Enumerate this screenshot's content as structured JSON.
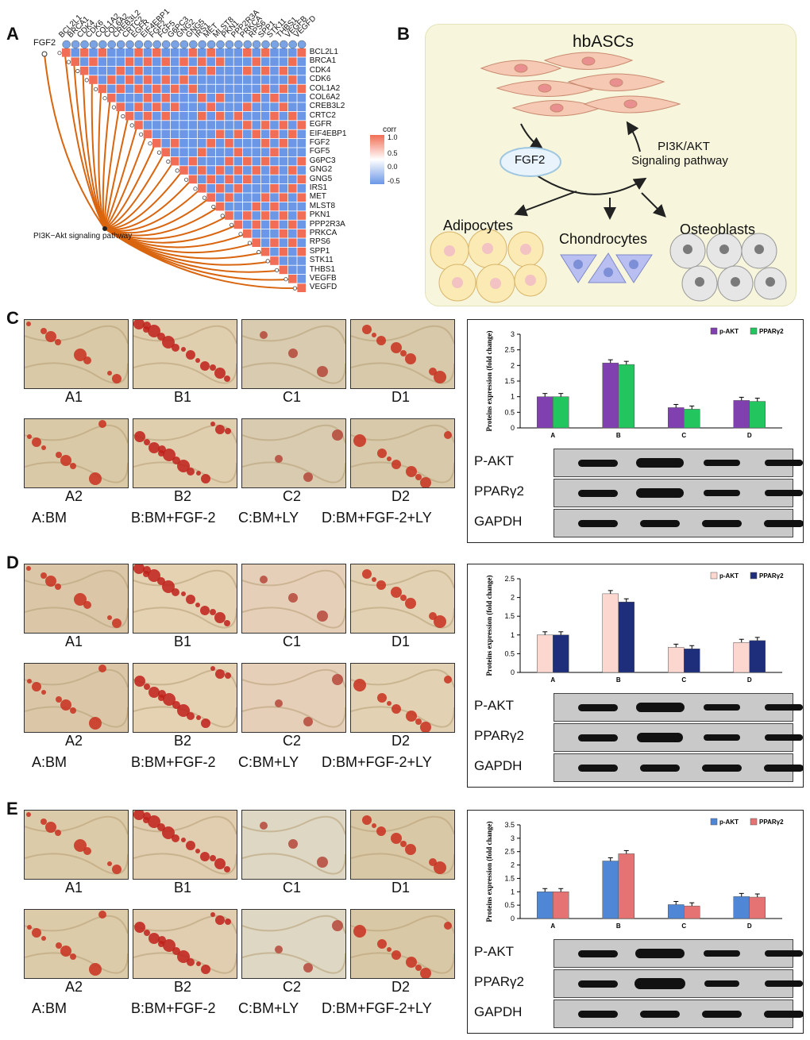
{
  "panelA": {
    "label": "A",
    "source_gene": "FGF2",
    "pathway": "PI3K−Akt signaling pathway",
    "genes": [
      "BCL2L1",
      "BRCA1",
      "CDK4",
      "CDK6",
      "COL1A2",
      "COL6A2",
      "CREB3L2",
      "CRTC2",
      "EGFR",
      "EIF4EBP1",
      "FGF2",
      "FGF5",
      "G6PC3",
      "GNG2",
      "GNG5",
      "IRS1",
      "MET",
      "MLST8",
      "PKN1",
      "PPP2R3A",
      "PRKCA",
      "RPS6",
      "SPP1",
      "STK11",
      "THBS1",
      "VEGFB",
      "VEGFD"
    ],
    "corr_legend": {
      "title": "corr",
      "ticks": [
        "1.0",
        "0.5",
        "0.0",
        "-0.5"
      ]
    },
    "colors": {
      "pos": "#f26d55",
      "neg": "#6b97e6",
      "pathway_line": "#d9650f"
    }
  },
  "panelB": {
    "label": "B",
    "title": "hbASCs",
    "fgf2": "FGF2",
    "signaling_line1": "PI3K/AKT",
    "signaling_line2": "Signaling pathway",
    "adipocytes": "Adipocytes",
    "chondrocytes": "Chondrocytes",
    "osteoblasts": "Osteoblasts",
    "bg_color": "#f7f6dd"
  },
  "panels": [
    {
      "label": "C",
      "row1": [
        "A1",
        "B1",
        "C1",
        "D1"
      ],
      "row2": [
        "A2",
        "B2",
        "C2",
        "D2"
      ],
      "legend": [
        "A:BM",
        "B:BM+FGF-2",
        "C:BM+LY",
        "D:BM+FGF-2+LY"
      ],
      "chart_data": {
        "type": "bar",
        "ylabel": "Proteins expression (fold change)",
        "categories": [
          "A",
          "B",
          "C",
          "D"
        ],
        "ylim": [
          0,
          3
        ],
        "yticks": [
          "0",
          "0.5",
          "1",
          "1.5",
          "2",
          "2.5",
          "3"
        ],
        "series": [
          {
            "name": "p-AKT",
            "values": [
              1.0,
              2.08,
              0.65,
              0.88
            ],
            "color": "#8040b0"
          },
          {
            "name": "PPARγ2",
            "values": [
              1.0,
              2.03,
              0.6,
              0.85
            ],
            "color": "#22c55e"
          }
        ]
      },
      "blot": [
        "P-AKT",
        "PPARγ2",
        "GAPDH"
      ]
    },
    {
      "label": "D",
      "row1": [
        "A1",
        "B1",
        "C1",
        "D1"
      ],
      "row2": [
        "A2",
        "B2",
        "C2",
        "D2"
      ],
      "legend": [
        "A:BM",
        "B:BM+FGF-2",
        "C:BM+LY",
        "D:BM+FGF-2+LY"
      ],
      "chart_data": {
        "type": "bar",
        "ylabel": "Proteins expression (fold change)",
        "categories": [
          "A",
          "B",
          "C",
          "D"
        ],
        "ylim": [
          0,
          2.5
        ],
        "yticks": [
          "0",
          "0.5",
          "1",
          "1.5",
          "2",
          "2.5"
        ],
        "series": [
          {
            "name": "p-AKT",
            "values": [
              1.0,
              2.1,
              0.67,
              0.8
            ],
            "color": "#fbd7d0"
          },
          {
            "name": "PPARγ2",
            "values": [
              1.0,
              1.88,
              0.63,
              0.85
            ],
            "color": "#1f2e7a"
          }
        ]
      },
      "blot": [
        "P-AKT",
        "PPARγ2",
        "GAPDH"
      ]
    },
    {
      "label": "E",
      "row1": [
        "A1",
        "B1",
        "C1",
        "D1"
      ],
      "row2": [
        "A2",
        "B2",
        "C2",
        "D2"
      ],
      "legend": [
        "A:BM",
        "B:BM+FGF-2",
        "C:BM+LY",
        "D:BM+FGF-2+LY"
      ],
      "chart_data": {
        "type": "bar",
        "ylabel": "Proteins expression (fold change)",
        "categories": [
          "A",
          "B",
          "C",
          "D"
        ],
        "ylim": [
          0,
          3.5
        ],
        "yticks": [
          "0",
          "0.5",
          "1",
          "1.5",
          "2",
          "2.5",
          "3",
          "3.5"
        ],
        "series": [
          {
            "name": "p-AKT",
            "values": [
              1.0,
              2.15,
              0.52,
              0.82
            ],
            "color": "#4f86d6"
          },
          {
            "name": "PPARγ2",
            "values": [
              1.0,
              2.42,
              0.47,
              0.8
            ],
            "color": "#e57373"
          }
        ]
      },
      "blot": [
        "P-AKT",
        "PPARγ2",
        "GAPDH"
      ]
    }
  ]
}
